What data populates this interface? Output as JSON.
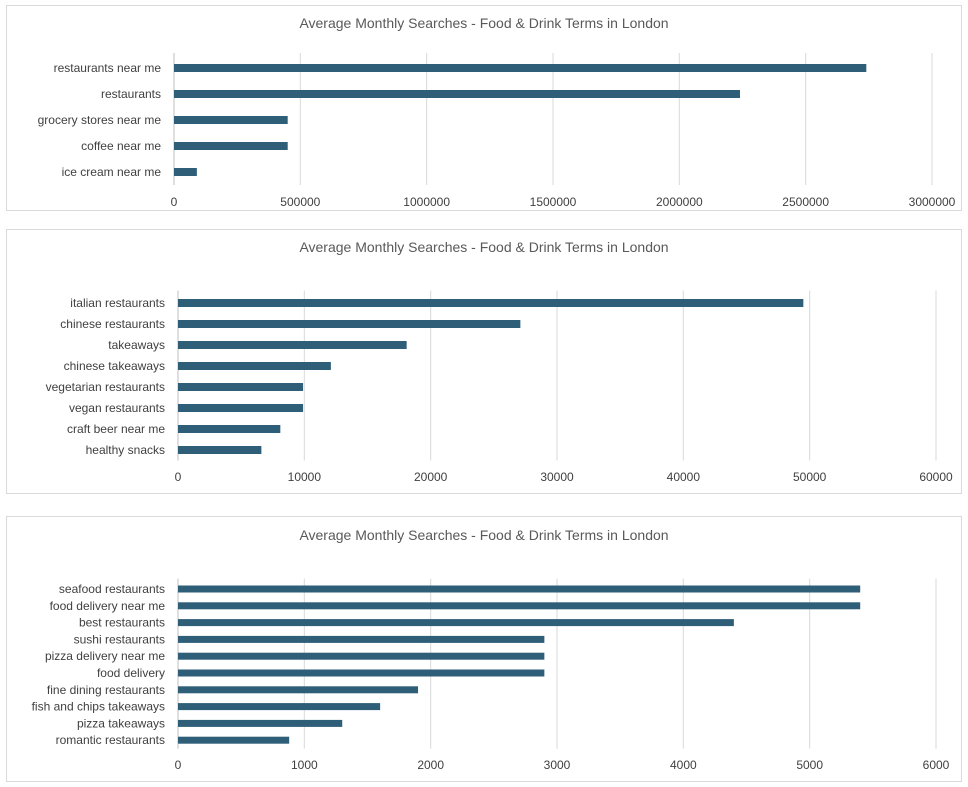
{
  "chart_data": [
    {
      "type": "bar",
      "orientation": "horizontal",
      "title": "Average Monthly Searches - Food & Drink Terms in London",
      "categories": [
        "restaurants near me",
        "restaurants",
        "grocery stores near me",
        "coffee near me",
        "ice cream near me"
      ],
      "values": [
        2740000,
        2240000,
        450000,
        450000,
        90500
      ],
      "xlim": [
        0,
        3000000
      ],
      "xticks": [
        "0",
        "500000",
        "1000000",
        "1500000",
        "2000000",
        "2500000",
        "3000000"
      ],
      "grid": true,
      "color": "#2e5e78"
    },
    {
      "type": "bar",
      "orientation": "horizontal",
      "title": "Average Monthly Searches - Food & Drink Terms in London",
      "categories": [
        "italian restaurants",
        "chinese restaurants",
        "takeaways",
        "chinese takeaways",
        "vegetarian restaurants",
        "vegan restaurants",
        "craft beer near me",
        "healthy snacks"
      ],
      "values": [
        49500,
        27100,
        18100,
        12100,
        9900,
        9900,
        8100,
        6600
      ],
      "xlim": [
        0,
        60000
      ],
      "xticks": [
        "0",
        "10000",
        "20000",
        "30000",
        "40000",
        "50000",
        "60000"
      ],
      "grid": true,
      "color": "#2e5e78"
    },
    {
      "type": "bar",
      "orientation": "horizontal",
      "title": "Average Monthly Searches - Food & Drink Terms in London",
      "categories": [
        "seafood restaurants",
        "food delivery near me",
        "best restaurants",
        "sushi restaurants",
        "pizza delivery near me",
        "food delivery",
        "fine dining restaurants",
        "fish and chips takeaways",
        "pizza takeaways",
        "romantic restaurants"
      ],
      "values": [
        5400,
        5400,
        4400,
        2900,
        2900,
        2900,
        1900,
        1600,
        1300,
        880
      ],
      "xlim": [
        0,
        6000
      ],
      "xticks": [
        "0",
        "1000",
        "2000",
        "3000",
        "4000",
        "5000",
        "6000"
      ],
      "grid": true,
      "color": "#2e5e78"
    }
  ]
}
